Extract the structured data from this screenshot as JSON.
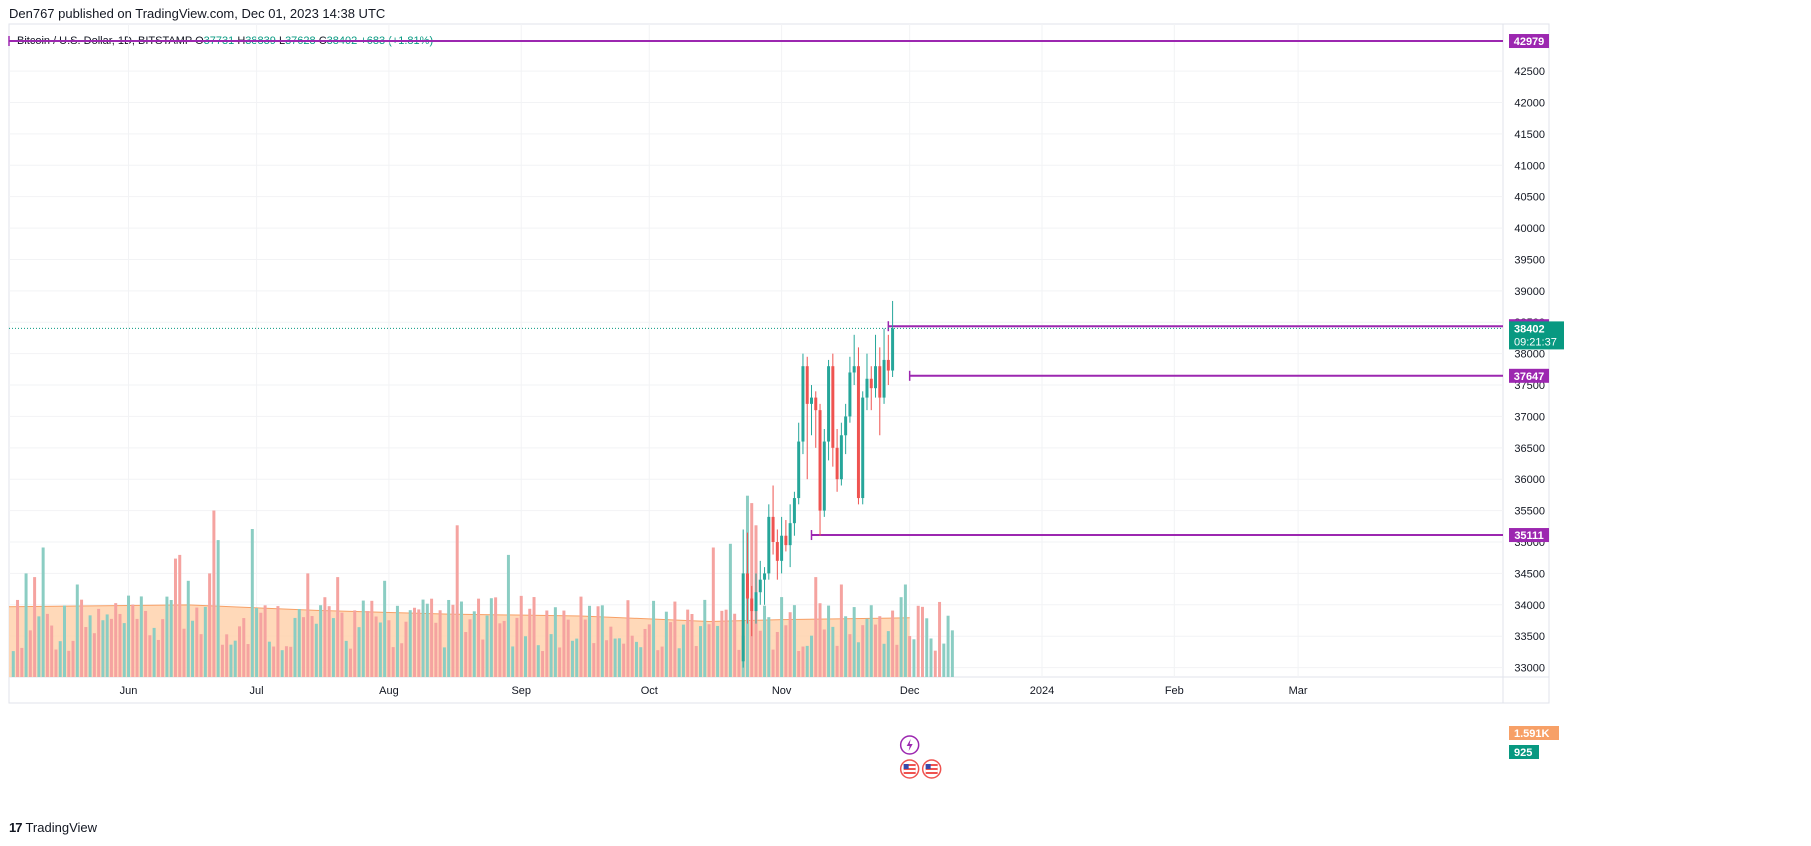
{
  "header": {
    "published": "Den767 published on TradingView.com, Dec 01, 2023 14:38 UTC"
  },
  "legend": {
    "symbol": "Bitcoin / U.S. Dollar, 1D, BITSTAMP",
    "o_label": "O",
    "o": "37731",
    "h_label": "H",
    "h": "38839",
    "l_label": "L",
    "l": "37628",
    "c_label": "C",
    "c": "38402",
    "change": "+683 (+1.81%)"
  },
  "footer": {
    "logo": "17",
    "brand": "TradingView"
  },
  "colors": {
    "up": "#26a69a",
    "down": "#ef5350",
    "up_vol": "#8bcdc3",
    "down_vol": "#f5a3a0",
    "level": "#9c27b0",
    "ma_fill": "#ffcfa8",
    "ma_line": "#f7a067",
    "price_label": "#089981",
    "vol_ma_label": "#f7a067"
  },
  "chart_data": {
    "type": "candlestick",
    "ylim": [
      32850,
      43250
    ],
    "y_ticks": [
      33000,
      33500,
      34000,
      34500,
      35000,
      35500,
      36000,
      36500,
      37000,
      37500,
      38000,
      38500,
      39000,
      39500,
      40000,
      40500,
      41000,
      41500,
      42000,
      42500
    ],
    "y_tick_labels": [
      "33000",
      "33500",
      "34000",
      "34500",
      "35000",
      "35500",
      "36000",
      "36500",
      "37000",
      "37500",
      "38000",
      "38500",
      "39000",
      "39500",
      "40000",
      "40500",
      "41000",
      "41500",
      "42000",
      "42500"
    ],
    "x_labels": [
      {
        "label": "Jun",
        "date": "2023-06-01"
      },
      {
        "label": "Jul",
        "date": "2023-07-01"
      },
      {
        "label": "Aug",
        "date": "2023-08-01"
      },
      {
        "label": "Sep",
        "date": "2023-09-01"
      },
      {
        "label": "Oct",
        "date": "2023-10-01"
      },
      {
        "label": "Nov",
        "date": "2023-11-01"
      },
      {
        "label": "Dec",
        "date": "2023-12-01"
      },
      {
        "label": "2024",
        "date": "2024-01-01"
      },
      {
        "label": "Feb",
        "date": "2024-02-01"
      },
      {
        "label": "Mar",
        "date": "2024-03-01"
      }
    ],
    "x_start": "2023-05-04",
    "x_end": "2024-04-18",
    "candles_start": "2023-10-23",
    "candles": [
      [
        33100,
        35200,
        33000,
        34500
      ],
      [
        34500,
        35150,
        33700,
        34100
      ],
      [
        34100,
        34300,
        33500,
        33900
      ],
      [
        33900,
        34500,
        33700,
        34200
      ],
      [
        34200,
        34700,
        34000,
        34400
      ],
      [
        34400,
        34600,
        34000,
        34500
      ],
      [
        34500,
        35600,
        34400,
        35400
      ],
      [
        35400,
        35900,
        34800,
        35000
      ],
      [
        35000,
        35200,
        34400,
        34700
      ],
      [
        34700,
        35400,
        34500,
        35100
      ],
      [
        35100,
        35350,
        34850,
        34950
      ],
      [
        34950,
        35600,
        34600,
        35300
      ],
      [
        35300,
        35800,
        35100,
        35700
      ],
      [
        35700,
        36900,
        35600,
        36600
      ],
      [
        36600,
        38000,
        36400,
        37800
      ],
      [
        37800,
        37950,
        36000,
        37200
      ],
      [
        37200,
        37500,
        36700,
        37300
      ],
      [
        37300,
        37400,
        36500,
        37100
      ],
      [
        37100,
        37200,
        35100,
        35500
      ],
      [
        35500,
        36800,
        35400,
        36600
      ],
      [
        36600,
        37900,
        36300,
        37800
      ],
      [
        37800,
        38000,
        36200,
        36500
      ],
      [
        36500,
        36800,
        35800,
        36000
      ],
      [
        36000,
        36900,
        35900,
        36700
      ],
      [
        36700,
        37200,
        36400,
        37000
      ],
      [
        37000,
        37950,
        36900,
        37700
      ],
      [
        37700,
        38300,
        37500,
        37800
      ],
      [
        37800,
        38100,
        35600,
        35700
      ],
      [
        35700,
        37400,
        35600,
        37300
      ],
      [
        37300,
        38000,
        37100,
        37600
      ],
      [
        37600,
        37800,
        37100,
        37450
      ],
      [
        37450,
        38300,
        37300,
        37800
      ],
      [
        37800,
        38100,
        36700,
        37300
      ],
      [
        37300,
        38400,
        37200,
        37900
      ],
      [
        37900,
        38300,
        37500,
        37731
      ],
      [
        37731,
        38839,
        37628,
        38402
      ]
    ],
    "volume_start": "2023-05-05",
    "volume_max": 5000,
    "volume_colors": "uddudduuddduudduddudduuddduudduddudduuddduudduddudduuddduudduddudduuddduudduddudduuddduudduddudduuddduudduddudduuddduudduddudduuddduudduddudduuddduudduddudduuddduudduddudduuddduudduddudduuddduudduduuduudduudduududduudduuu",
    "volume_spikes": [
      {
        "date": "2023-05-08",
        "v": 2800
      },
      {
        "date": "2023-05-10",
        "v": 2700
      },
      {
        "date": "2023-05-12",
        "v": 3500
      },
      {
        "date": "2023-05-20",
        "v": 2500
      },
      {
        "date": "2023-06-12",
        "v": 3200
      },
      {
        "date": "2023-06-13",
        "v": 3300
      },
      {
        "date": "2023-06-15",
        "v": 2600
      },
      {
        "date": "2023-06-20",
        "v": 2800
      },
      {
        "date": "2023-06-21",
        "v": 4500
      },
      {
        "date": "2023-06-22",
        "v": 3700
      },
      {
        "date": "2023-06-30",
        "v": 4000
      },
      {
        "date": "2023-07-13",
        "v": 2800
      },
      {
        "date": "2023-07-20",
        "v": 2700
      },
      {
        "date": "2023-07-31",
        "v": 2600
      },
      {
        "date": "2023-08-17",
        "v": 4100
      },
      {
        "date": "2023-08-29",
        "v": 3300
      },
      {
        "date": "2023-10-16",
        "v": 3500
      },
      {
        "date": "2023-10-20",
        "v": 3600
      },
      {
        "date": "2023-10-24",
        "v": 4900
      },
      {
        "date": "2023-10-25",
        "v": 4700
      },
      {
        "date": "2023-10-26",
        "v": 4100
      },
      {
        "date": "2023-11-09",
        "v": 2700
      },
      {
        "date": "2023-11-15",
        "v": 2500
      },
      {
        "date": "2023-11-30",
        "v": 2500
      }
    ],
    "volume_ma": [
      {
        "date": "2023-05-04",
        "v": 1900
      },
      {
        "date": "2023-06-15",
        "v": 1950
      },
      {
        "date": "2023-07-15",
        "v": 1800
      },
      {
        "date": "2023-08-15",
        "v": 1700
      },
      {
        "date": "2023-09-15",
        "v": 1650
      },
      {
        "date": "2023-10-15",
        "v": 1500
      },
      {
        "date": "2023-11-01",
        "v": 1550
      },
      {
        "date": "2023-12-01",
        "v": 1600
      }
    ],
    "levels": [
      {
        "price": 42979,
        "label": "42979",
        "start": "2023-05-04"
      },
      {
        "price": 38437,
        "label": "38437",
        "start": "2023-11-26"
      },
      {
        "price": 37647,
        "label": "37647",
        "start": "2023-12-01"
      },
      {
        "price": 35111,
        "label": "35111",
        "start": "2023-11-08"
      }
    ],
    "last_price": {
      "price": 38402,
      "label": "38402",
      "countdown": "09:21:37"
    },
    "volume_labels": [
      {
        "label": "1.591K",
        "kind": "ma"
      },
      {
        "label": "925",
        "kind": "vol"
      }
    ]
  }
}
